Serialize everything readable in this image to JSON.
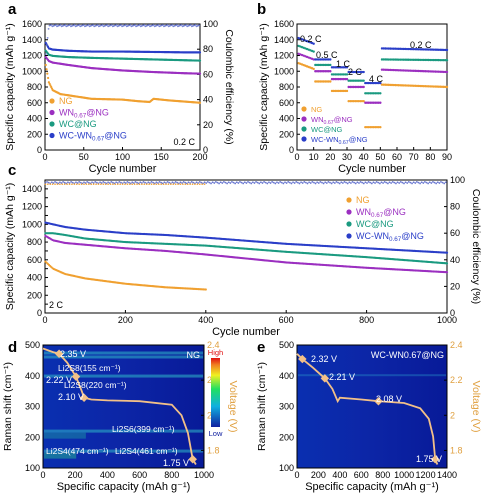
{
  "panel_labels": [
    "a",
    "b",
    "c",
    "d",
    "e"
  ],
  "chart_data": [
    {
      "panel": "a",
      "type": "scatter",
      "xlabel": "Cycle number",
      "ylabel": "Specific capacity (mAh g⁻¹)",
      "ylabel_right": "Coulombic efficiency (%)",
      "xlim": [
        0,
        200
      ],
      "xticks": [
        0,
        50,
        100,
        150,
        200
      ],
      "ylim": [
        0,
        1600
      ],
      "yticks": [
        0,
        200,
        400,
        600,
        800,
        1000,
        1200,
        1400,
        1600
      ],
      "ylim_right": [
        0,
        100
      ],
      "yticks_right": [
        0,
        20,
        40,
        60,
        80,
        100
      ],
      "annotation": "0.2 C",
      "legend": [
        {
          "name": "NG",
          "color": "#f0a030"
        },
        {
          "name": "WN0.67@NG",
          "base": "WN",
          "sub": "0.67",
          "tail": "@NG",
          "color": "#9b2fc0"
        },
        {
          "name": "WC@NG",
          "color": "#1a9a80"
        },
        {
          "name": "WC-WN0.67@NG",
          "base": "WC-WN",
          "sub": "0.67",
          "tail": "@NG",
          "color": "#2a3ec8"
        }
      ],
      "series": [
        {
          "name": "NG",
          "x": [
            1,
            5,
            10,
            20,
            40,
            60,
            80,
            100,
            120,
            135,
            140,
            160,
            180,
            200
          ],
          "y": [
            1080,
            860,
            760,
            710,
            680,
            650,
            645,
            640,
            620,
            610,
            650,
            630,
            615,
            600
          ]
        },
        {
          "name": "WN0.67@NG",
          "x": [
            1,
            5,
            10,
            30,
            60,
            100,
            140,
            180,
            200
          ],
          "y": [
            1180,
            1130,
            1110,
            1080,
            1040,
            1010,
            990,
            975,
            970
          ]
        },
        {
          "name": "WC@NG",
          "x": [
            1,
            5,
            10,
            30,
            60,
            100,
            140,
            180,
            200
          ],
          "y": [
            1260,
            1210,
            1195,
            1180,
            1170,
            1160,
            1150,
            1140,
            1135
          ]
        },
        {
          "name": "WC-WN0.67@NG",
          "x": [
            1,
            5,
            10,
            30,
            60,
            100,
            140,
            180,
            200
          ],
          "y": [
            1360,
            1290,
            1275,
            1260,
            1250,
            1250,
            1245,
            1240,
            1240
          ]
        },
        {
          "name": "Coulombic efficiency",
          "axis": "right",
          "x": [
            1,
            5,
            200
          ],
          "y": [
            76,
            99,
            99
          ]
        }
      ]
    },
    {
      "panel": "b",
      "type": "scatter",
      "xlabel": "Cycle number",
      "ylabel": "Specific capacity (mAh g⁻¹)",
      "xlim": [
        0,
        90
      ],
      "xticks": [
        0,
        10,
        20,
        30,
        40,
        50,
        60,
        70,
        80,
        90
      ],
      "ylim": [
        0,
        1600
      ],
      "yticks": [
        0,
        200,
        400,
        600,
        800,
        1000,
        1200,
        1400,
        1600
      ],
      "rate_labels": [
        "0.2 C",
        "0.5 C",
        "1 C",
        "2 C",
        "4 C",
        "0.2 C"
      ],
      "legend": [
        {
          "name": "NG",
          "color": "#f0a030"
        },
        {
          "name": "WN0.67@NG",
          "base": "WN",
          "sub": "0.67",
          "tail": "@NG",
          "color": "#9b2fc0"
        },
        {
          "name": "WC@NG",
          "color": "#1a9a80"
        },
        {
          "name": "WC-WN0.67@NG",
          "base": "WC-WN",
          "sub": "0.67",
          "tail": "@NG",
          "color": "#2a3ec8"
        }
      ],
      "steps": [
        [
          1,
          10
        ],
        [
          11,
          20
        ],
        [
          21,
          30
        ],
        [
          31,
          40
        ],
        [
          41,
          50
        ],
        [
          51,
          90
        ]
      ],
      "series": [
        {
          "name": "NG",
          "levels": [
            1030,
            870,
            750,
            620,
            290,
            830
          ],
          "end": 800
        },
        {
          "name": "WN0.67@NG",
          "levels": [
            1150,
            1000,
            900,
            800,
            600,
            1020
          ],
          "end": 990
        },
        {
          "name": "WC@NG",
          "levels": [
            1250,
            1080,
            960,
            880,
            720,
            1150
          ],
          "end": 1140
        },
        {
          "name": "WC-WN0.67@NG",
          "levels": [
            1350,
            1150,
            1050,
            990,
            850,
            1290
          ],
          "end": 1270
        }
      ]
    },
    {
      "panel": "c",
      "type": "scatter",
      "xlabel": "Cycle number",
      "ylabel": "Specific capacity (mAh g⁻¹)",
      "ylabel_right": "Coulombic efficiency (%)",
      "xlim": [
        0,
        1000
      ],
      "xticks": [
        0,
        200,
        400,
        600,
        800,
        1000
      ],
      "ylim": [
        0,
        1500
      ],
      "yticks": [
        0,
        100,
        200,
        300,
        400,
        500,
        600,
        700,
        800,
        900,
        1000,
        1100,
        1200,
        1300,
        1400,
        1500
      ],
      "ylim_right": [
        0,
        100
      ],
      "yticks_right": [
        0,
        20,
        40,
        60,
        80,
        100
      ],
      "annotation": "2 C",
      "legend": [
        {
          "name": "NG",
          "color": "#f0a030"
        },
        {
          "name": "WN0.67@NG",
          "base": "WN",
          "sub": "0.67",
          "tail": "@NG",
          "color": "#9b2fc0"
        },
        {
          "name": "WC@NG",
          "color": "#1a9a80"
        },
        {
          "name": "WC-WN0.67@NG",
          "base": "WC-WN",
          "sub": "0.67",
          "tail": "@NG",
          "color": "#2a3ec8"
        }
      ],
      "series": [
        {
          "name": "NG",
          "x": [
            1,
            20,
            50,
            100,
            200,
            300,
            400
          ],
          "y": [
            580,
            500,
            440,
            390,
            330,
            290,
            265
          ]
        },
        {
          "name": "WN0.67@NG",
          "x": [
            1,
            20,
            50,
            100,
            200,
            300,
            400,
            600,
            800,
            1000
          ],
          "y": [
            870,
            820,
            790,
            770,
            730,
            700,
            660,
            570,
            510,
            460
          ]
        },
        {
          "name": "WC@NG",
          "x": [
            1,
            20,
            50,
            100,
            200,
            300,
            400,
            600,
            800,
            1000
          ],
          "y": [
            900,
            900,
            880,
            840,
            800,
            780,
            760,
            690,
            630,
            560
          ]
        },
        {
          "name": "WC-WN0.67@NG",
          "x": [
            1,
            20,
            50,
            100,
            200,
            300,
            400,
            600,
            800,
            1000
          ],
          "y": [
            1020,
            1000,
            970,
            940,
            900,
            880,
            850,
            780,
            730,
            680
          ]
        },
        {
          "name": "Coulombic efficiency",
          "axis": "right",
          "x": [
            1,
            1000
          ],
          "y": [
            98,
            98
          ]
        }
      ]
    },
    {
      "panel": "d",
      "type": "heatmap",
      "sample": "NG",
      "xlabel": "Specific capacity (mAh g⁻¹)",
      "ylabel": "Raman shift (cm⁻¹)",
      "ylabel_right": "Voltage (V)",
      "xlim": [
        0,
        1000
      ],
      "xticks": [
        0,
        200,
        400,
        600,
        800,
        1000
      ],
      "ylim": [
        100,
        500
      ],
      "yticks": [
        100,
        200,
        300,
        400,
        500
      ],
      "ylim_right": [
        1.7,
        2.4
      ],
      "yticks_right": [
        1.8,
        2.0,
        2.2,
        2.4
      ],
      "colorbar": {
        "high": "High",
        "low": "Low"
      },
      "bands": [
        {
          "label": "Li2S8(155 cm⁻¹)",
          "shift": 155
        },
        {
          "label": "Li2S8(220 cm⁻¹)",
          "shift": 220
        },
        {
          "label": "Li2S6(399 cm⁻¹)",
          "shift": 399
        },
        {
          "label": "Li2S4(474 cm⁻¹)",
          "shift": 474
        },
        {
          "label": "Li2S4(461 cm⁻¹)",
          "shift": 461
        }
      ],
      "voltage_points": [
        {
          "label": "2.35 V",
          "x": 100,
          "v": 2.35
        },
        {
          "label": "2.22 V",
          "x": 205,
          "v": 2.22
        },
        {
          "label": "2.10 V",
          "x": 255,
          "v": 2.1
        },
        {
          "label": "1.75 V",
          "x": 930,
          "v": 1.75
        }
      ],
      "voltage_curve": {
        "x": [
          0,
          60,
          100,
          150,
          205,
          240,
          255,
          300,
          400,
          600,
          800,
          860,
          900,
          930,
          950
        ],
        "v": [
          2.38,
          2.36,
          2.35,
          2.3,
          2.22,
          2.14,
          2.1,
          2.09,
          2.085,
          2.08,
          2.06,
          2.0,
          1.9,
          1.75,
          1.72
        ]
      }
    },
    {
      "panel": "e",
      "type": "heatmap",
      "sample": "WC-WN0.67@NG",
      "xlabel": "Specific capacity (mAh g⁻¹)",
      "ylabel": "Raman shift (cm⁻¹)",
      "ylabel_right": "Voltage (V)",
      "xlim": [
        0,
        1400
      ],
      "xticks": [
        0,
        200,
        400,
        600,
        800,
        1000,
        1200,
        1400
      ],
      "ylim": [
        100,
        500
      ],
      "yticks": [
        100,
        200,
        300,
        400,
        500
      ],
      "ylim_right": [
        1.7,
        2.4
      ],
      "yticks_right": [
        1.8,
        2.0,
        2.2,
        2.4
      ],
      "voltage_points": [
        {
          "label": "2.32 V",
          "x": 50,
          "v": 2.32
        },
        {
          "label": "2.21 V",
          "x": 260,
          "v": 2.21
        },
        {
          "label": "2.08 V",
          "x": 760,
          "v": 2.08
        },
        {
          "label": "1.75 V",
          "x": 1290,
          "v": 1.75
        }
      ],
      "voltage_curve": {
        "x": [
          0,
          50,
          150,
          260,
          330,
          380,
          400,
          600,
          760,
          1000,
          1150,
          1230,
          1270,
          1290,
          1310
        ],
        "v": [
          2.35,
          2.32,
          2.27,
          2.21,
          2.15,
          2.08,
          2.1,
          2.09,
          2.08,
          2.07,
          2.04,
          1.98,
          1.88,
          1.75,
          1.72
        ]
      }
    }
  ]
}
